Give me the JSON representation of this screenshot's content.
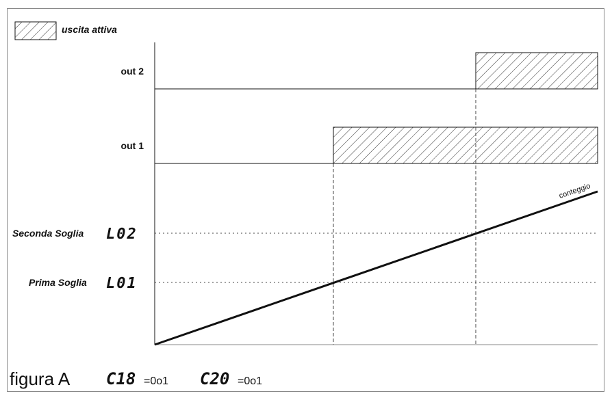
{
  "legend": {
    "label": "uscita attiva"
  },
  "rows": {
    "out2": {
      "label": "out 2"
    },
    "out1": {
      "label": "out 1"
    }
  },
  "thresholds": {
    "second": {
      "label": "Seconda Soglia",
      "code": "L02"
    },
    "first": {
      "label": "Prima Soglia",
      "code": "L01"
    }
  },
  "counter": {
    "label": "conteggio"
  },
  "caption": {
    "title": "figura A",
    "param1_code": "C18",
    "param1_value": "=0o1",
    "param2_code": "C20",
    "param2_value": "=0o1"
  },
  "colors": {
    "line": "#111111",
    "frame": "#888888",
    "hatch": "#333333"
  }
}
